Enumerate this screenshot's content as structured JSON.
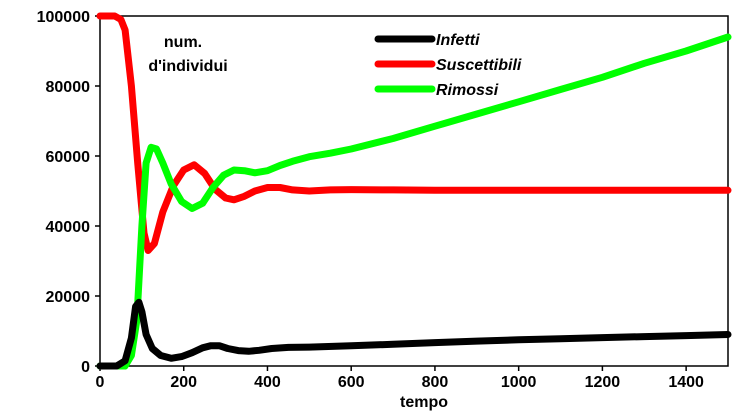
{
  "chart_data": {
    "type": "line",
    "title": "",
    "xlabel": "tempo",
    "ylabel_lines": [
      "num.",
      "d'individui"
    ],
    "xlim": [
      0,
      1500
    ],
    "ylim": [
      0,
      100000
    ],
    "xticks": [
      0,
      200,
      400,
      600,
      800,
      1000,
      1200,
      1400
    ],
    "yticks": [
      0,
      20000,
      40000,
      60000,
      80000,
      100000
    ],
    "grid": false,
    "legend": "top",
    "series": [
      {
        "name": "Infetti",
        "color": "#000000",
        "points": [
          [
            0,
            0
          ],
          [
            40,
            0
          ],
          [
            60,
            1500
          ],
          [
            75,
            8000
          ],
          [
            85,
            17000
          ],
          [
            93,
            18200
          ],
          [
            100,
            15500
          ],
          [
            110,
            9000
          ],
          [
            125,
            5000
          ],
          [
            145,
            3000
          ],
          [
            170,
            2200
          ],
          [
            195,
            2700
          ],
          [
            220,
            3800
          ],
          [
            245,
            5200
          ],
          [
            265,
            5800
          ],
          [
            285,
            5800
          ],
          [
            305,
            5000
          ],
          [
            330,
            4400
          ],
          [
            355,
            4200
          ],
          [
            380,
            4500
          ],
          [
            410,
            5000
          ],
          [
            450,
            5300
          ],
          [
            500,
            5400
          ],
          [
            600,
            5800
          ],
          [
            700,
            6200
          ],
          [
            800,
            6700
          ],
          [
            900,
            7100
          ],
          [
            1000,
            7500
          ],
          [
            1100,
            7800
          ],
          [
            1200,
            8100
          ],
          [
            1300,
            8400
          ],
          [
            1400,
            8700
          ],
          [
            1500,
            9000
          ]
        ]
      },
      {
        "name": "Suscettibili",
        "color": "#ff0000",
        "points": [
          [
            0,
            100000
          ],
          [
            35,
            100000
          ],
          [
            50,
            99000
          ],
          [
            60,
            96000
          ],
          [
            75,
            80000
          ],
          [
            90,
            58000
          ],
          [
            105,
            38000
          ],
          [
            115,
            33000
          ],
          [
            130,
            35000
          ],
          [
            150,
            44000
          ],
          [
            175,
            51500
          ],
          [
            200,
            56000
          ],
          [
            225,
            57500
          ],
          [
            250,
            55000
          ],
          [
            275,
            50500
          ],
          [
            300,
            48000
          ],
          [
            320,
            47500
          ],
          [
            345,
            48500
          ],
          [
            370,
            50000
          ],
          [
            400,
            51000
          ],
          [
            430,
            51000
          ],
          [
            460,
            50300
          ],
          [
            500,
            50000
          ],
          [
            550,
            50300
          ],
          [
            600,
            50400
          ],
          [
            700,
            50300
          ],
          [
            800,
            50200
          ],
          [
            1000,
            50200
          ],
          [
            1200,
            50200
          ],
          [
            1500,
            50200
          ]
        ]
      },
      {
        "name": "Rimossi",
        "color": "#00ff00",
        "points": [
          [
            0,
            0
          ],
          [
            60,
            0
          ],
          [
            75,
            3000
          ],
          [
            88,
            13000
          ],
          [
            100,
            40000
          ],
          [
            110,
            58000
          ],
          [
            122,
            62500
          ],
          [
            135,
            62000
          ],
          [
            150,
            58000
          ],
          [
            170,
            52000
          ],
          [
            195,
            47000
          ],
          [
            220,
            45000
          ],
          [
            245,
            46500
          ],
          [
            270,
            51000
          ],
          [
            295,
            54500
          ],
          [
            320,
            56000
          ],
          [
            345,
            55800
          ],
          [
            370,
            55200
          ],
          [
            400,
            55800
          ],
          [
            430,
            57300
          ],
          [
            460,
            58500
          ],
          [
            500,
            59800
          ],
          [
            550,
            60800
          ],
          [
            600,
            62000
          ],
          [
            700,
            65000
          ],
          [
            800,
            68500
          ],
          [
            900,
            72000
          ],
          [
            1000,
            75500
          ],
          [
            1100,
            79000
          ],
          [
            1200,
            82500
          ],
          [
            1300,
            86500
          ],
          [
            1400,
            90000
          ],
          [
            1500,
            94000
          ]
        ]
      }
    ]
  }
}
